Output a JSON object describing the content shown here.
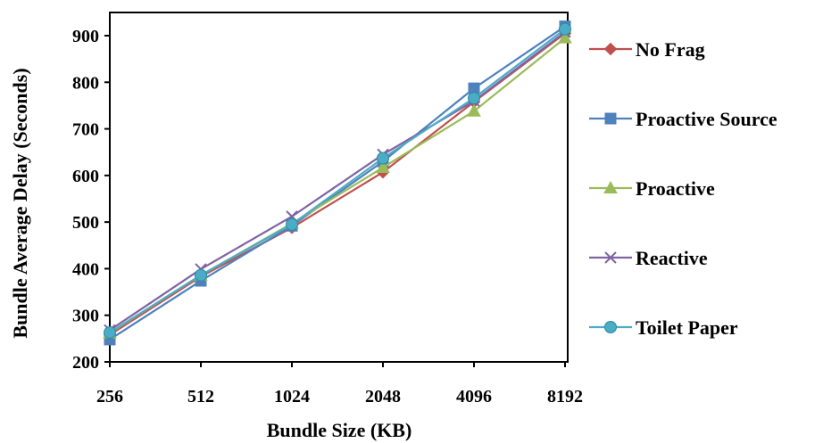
{
  "chart_data": {
    "type": "line",
    "xlabel": "Bundle Size (KB)",
    "ylabel": "Bundle Average Delay (Seconds)",
    "categories": [
      "256",
      "512",
      "1024",
      "2048",
      "4096",
      "8192"
    ],
    "ylim": [
      200,
      900
    ],
    "yticks": [
      200,
      300,
      400,
      500,
      600,
      700,
      800,
      900
    ],
    "grid": false,
    "legend_position": "right",
    "series": [
      {
        "name": "No Frag",
        "color": "#c0504d",
        "marker": "diamond",
        "values": [
          258,
          383,
          488,
          607,
          758,
          905
        ]
      },
      {
        "name": "Proactive Source",
        "color": "#4f81bd",
        "marker": "square",
        "values": [
          248,
          374,
          492,
          630,
          787,
          920
        ]
      },
      {
        "name": "Proactive",
        "color": "#9bbb59",
        "marker": "triangle",
        "values": [
          262,
          386,
          497,
          617,
          738,
          895
        ]
      },
      {
        "name": "Reactive",
        "color": "#8064a2",
        "marker": "cross",
        "values": [
          268,
          399,
          512,
          645,
          760,
          908
        ]
      },
      {
        "name": "Toilet Paper",
        "color": "#4bacc6",
        "marker": "circle",
        "values": [
          263,
          386,
          495,
          637,
          766,
          914
        ]
      }
    ]
  }
}
